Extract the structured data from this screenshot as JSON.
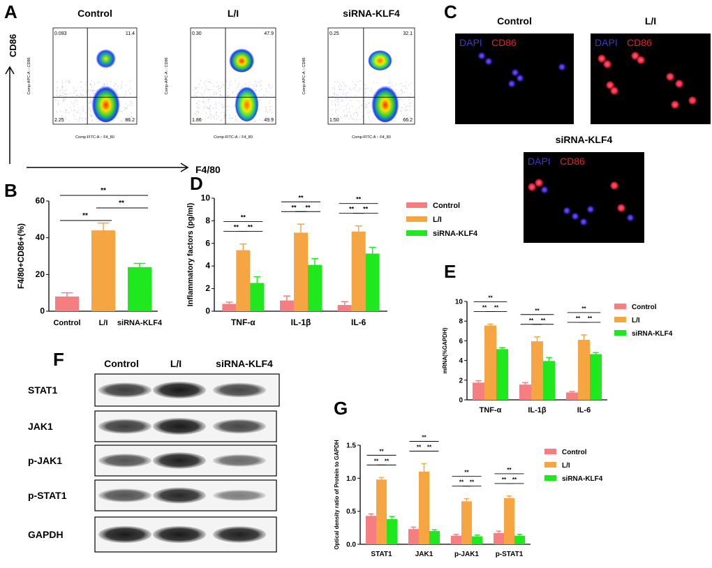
{
  "colors": {
    "control": "#F57E80",
    "li": "#F6A543",
    "sirna": "#1FE81F",
    "axis": "#000000",
    "dapi": "#3A3ACF",
    "cd86": "#E8202A"
  },
  "panel_a": {
    "letter": "A",
    "y_axis_label": "CD86",
    "x_axis_label": "F4/80",
    "plots": [
      {
        "title": "Control",
        "q_ul": "0.093",
        "q_ur": "11.4",
        "q_ll": "2.25",
        "q_lr": "86.2",
        "ylab": "Comp-APC-A :: CD86",
        "xlab": "Comp-FITC-A :: F4_80"
      },
      {
        "title": "L/I",
        "q_ul": "0.30",
        "q_ur": "47.9",
        "q_ll": "1.86",
        "q_lr": "49.9",
        "ylab": "Comp-APC-A :: CD86",
        "xlab": "Comp-FITC-A :: F4_80"
      },
      {
        "title": "siRNA-KLF4",
        "q_ul": "0.25",
        "q_ur": "32.1",
        "q_ll": "1.50",
        "q_lr": "66.2",
        "ylab": "Comp-APC-A :: CD86",
        "xlab": "Comp-FITC-A :: F4_80"
      }
    ]
  },
  "panel_c": {
    "letter": "C",
    "images": [
      {
        "title": "Control",
        "dapi": "DAPI",
        "cd86": "CD86"
      },
      {
        "title": "L/I",
        "dapi": "DAPI",
        "cd86": "CD86"
      },
      {
        "title": "siRNA-KLF4",
        "dapi": "DAPI",
        "cd86": "CD86"
      }
    ]
  },
  "panel_f": {
    "letter": "F",
    "columns": [
      "Control",
      "L/I",
      "siRNA-KLF4"
    ],
    "rows": [
      "STAT1",
      "JAK1",
      "p-JAK1",
      "p-STAT1",
      "GAPDH"
    ]
  },
  "chart_data": [
    {
      "panel": "B",
      "type": "bar",
      "categories": [
        "Control",
        "L/I",
        "siRNA-KLF4"
      ],
      "values": [
        8,
        44,
        24
      ],
      "errors": [
        2,
        4,
        2
      ],
      "ylabel": "F4/80+CD86+(%)",
      "ylim": [
        0,
        60
      ],
      "yticks": [
        0,
        20,
        40,
        60
      ],
      "sig": [
        "**",
        "**",
        "**"
      ]
    },
    {
      "panel": "D",
      "type": "bar",
      "categories": [
        "TNF-α",
        "IL-1β",
        "IL-6"
      ],
      "series": [
        {
          "name": "Control",
          "values": [
            0.65,
            0.95,
            0.55
          ],
          "errors": [
            0.15,
            0.4,
            0.3
          ]
        },
        {
          "name": "L/I",
          "values": [
            5.4,
            6.95,
            7.05
          ],
          "errors": [
            0.55,
            0.75,
            0.5
          ]
        },
        {
          "name": "siRNA-KLF4",
          "values": [
            2.5,
            4.1,
            5.1
          ],
          "errors": [
            0.55,
            0.55,
            0.55
          ]
        }
      ],
      "ylabel": "Inflammatory factors (pg/ml)",
      "ylim": [
        0,
        10
      ],
      "yticks": [
        0,
        2,
        4,
        6,
        8,
        10
      ],
      "sig": "**",
      "legend": "right"
    },
    {
      "panel": "E",
      "type": "bar",
      "categories": [
        "TNF-α",
        "IL-1β",
        "IL-6"
      ],
      "series": [
        {
          "name": "Control",
          "values": [
            1.75,
            1.55,
            0.75
          ],
          "errors": [
            0.2,
            0.2,
            0.1
          ]
        },
        {
          "name": "L/I",
          "values": [
            7.55,
            5.95,
            6.1
          ],
          "errors": [
            0.15,
            0.45,
            0.5
          ]
        },
        {
          "name": "siRNA-KLF4",
          "values": [
            5.15,
            3.95,
            4.65
          ],
          "errors": [
            0.15,
            0.35,
            0.15
          ]
        }
      ],
      "ylabel": "mRNA(%GAPDH)",
      "ylim": [
        0,
        10
      ],
      "yticks": [
        0,
        2,
        4,
        6,
        8,
        10
      ],
      "sig": "**",
      "legend": "right"
    },
    {
      "panel": "G",
      "type": "bar",
      "categories": [
        "STAT1",
        "JAK1",
        "p-JAK1",
        "p-STAT1"
      ],
      "series": [
        {
          "name": "Control",
          "values": [
            0.43,
            0.23,
            0.13,
            0.17
          ],
          "errors": [
            0.03,
            0.03,
            0.02,
            0.03
          ]
        },
        {
          "name": "L/I",
          "values": [
            0.98,
            1.1,
            0.65,
            0.7
          ],
          "errors": [
            0.03,
            0.12,
            0.04,
            0.03
          ]
        },
        {
          "name": "siRNA-KLF4",
          "values": [
            0.38,
            0.2,
            0.12,
            0.13
          ],
          "errors": [
            0.04,
            0.02,
            0.02,
            0.02
          ]
        }
      ],
      "ylabel": "Optical density ratio of Protein to GAPDH",
      "ylim": [
        0,
        1.5
      ],
      "yticks": [
        "0.0",
        "0.5",
        "1.0",
        "1.5"
      ],
      "sig": "**",
      "legend": "right"
    }
  ]
}
